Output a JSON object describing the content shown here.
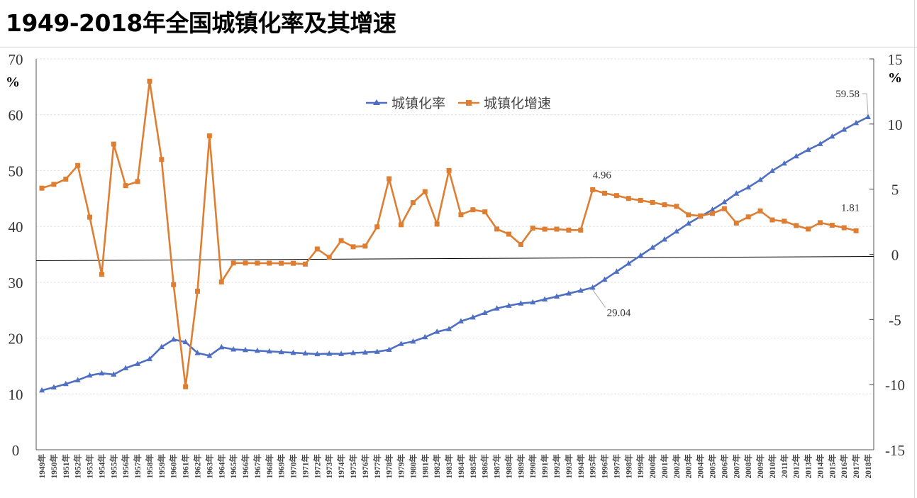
{
  "title": "1949-2018年全国城镇化率及其增速",
  "chart_data": {
    "type": "line",
    "title": "1949-2018年全国城镇化率及其增速",
    "left_unit": "%",
    "right_unit": "%",
    "ylim_left": [
      0,
      70
    ],
    "ylim_right": [
      -15,
      15
    ],
    "left_ticks": [
      "0",
      "10",
      "20",
      "30",
      "40",
      "50",
      "60",
      "70"
    ],
    "right_ticks": [
      "-15",
      "-10",
      "-5",
      "0",
      "5",
      "10",
      "15"
    ],
    "legend_position": "top-center",
    "x": [
      1949,
      1950,
      1951,
      1952,
      1953,
      1954,
      1955,
      1956,
      1957,
      1958,
      1959,
      1960,
      1961,
      1962,
      1963,
      1964,
      1965,
      1966,
      1967,
      1968,
      1969,
      1970,
      1971,
      1972,
      1973,
      1974,
      1975,
      1976,
      1977,
      1978,
      1979,
      1980,
      1981,
      1982,
      1983,
      1984,
      1985,
      1986,
      1987,
      1988,
      1989,
      1990,
      1991,
      1992,
      1993,
      1994,
      1995,
      1996,
      1997,
      1998,
      1999,
      2000,
      2001,
      2002,
      2003,
      2004,
      2005,
      2006,
      2007,
      2008,
      2009,
      2010,
      2011,
      2012,
      2013,
      2014,
      2015,
      2016,
      2017,
      2018
    ],
    "x_suffix": "年",
    "series": [
      {
        "name": "城镇化率",
        "axis": "left",
        "color": "#4f6fc2",
        "marker": "triangle",
        "values": [
          10.64,
          11.18,
          11.78,
          12.46,
          13.31,
          13.69,
          13.48,
          14.62,
          15.39,
          16.25,
          18.41,
          19.75,
          19.29,
          17.33,
          16.84,
          18.37,
          17.98,
          17.86,
          17.74,
          17.62,
          17.5,
          17.38,
          17.26,
          17.13,
          17.2,
          17.16,
          17.34,
          17.44,
          17.55,
          17.92,
          18.96,
          19.39,
          20.16,
          21.13,
          21.62,
          23.01,
          23.71,
          24.52,
          25.32,
          25.81,
          26.21,
          26.41,
          26.94,
          27.46,
          27.99,
          28.51,
          29.04,
          30.48,
          31.91,
          33.35,
          34.78,
          36.22,
          37.66,
          39.09,
          40.53,
          41.76,
          42.99,
          44.34,
          45.89,
          46.99,
          48.34,
          49.95,
          51.27,
          52.57,
          53.73,
          54.77,
          56.1,
          57.35,
          58.52,
          59.58
        ]
      },
      {
        "name": "城镇化增速",
        "axis": "right",
        "color": "#de7e33",
        "marker": "square",
        "values": [
          5.08,
          5.37,
          5.77,
          6.82,
          2.85,
          -1.53,
          8.46,
          5.27,
          5.59,
          13.29,
          7.28,
          -2.33,
          -10.16,
          -2.83,
          9.09,
          -2.12,
          -0.67,
          -0.67,
          -0.68,
          -0.68,
          -0.69,
          -0.69,
          -0.75,
          0.41,
          -0.23,
          1.05,
          0.58,
          0.63,
          2.11,
          5.8,
          2.27,
          3.97,
          4.81,
          2.32,
          6.43,
          3.04,
          3.42,
          3.26,
          1.94,
          1.55,
          0.76,
          2.01,
          1.93,
          1.93,
          1.86,
          1.86,
          4.96,
          4.69,
          4.51,
          4.29,
          4.14,
          3.98,
          3.8,
          3.68,
          3.03,
          2.95,
          3.14,
          3.5,
          2.4,
          2.87,
          3.33,
          2.64,
          2.54,
          2.21,
          1.94,
          2.43,
          2.23,
          2.04,
          1.81,
          null
        ]
      }
    ],
    "annotations": [
      {
        "series": 0,
        "x": 1995,
        "text": "29.04"
      },
      {
        "series": 0,
        "x": 2018,
        "text": "59.58"
      },
      {
        "series": 1,
        "x": 1995,
        "text": "4.96"
      },
      {
        "series": 1,
        "x": 2017,
        "text": "1.81"
      }
    ]
  }
}
